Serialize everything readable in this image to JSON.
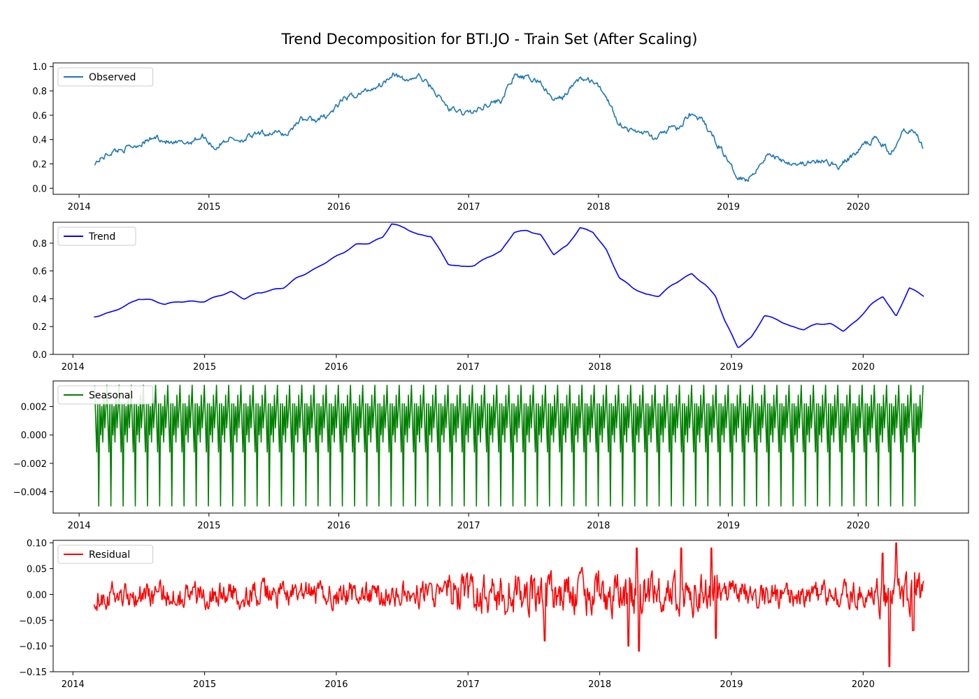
{
  "title": "Trend Decomposition for BTI.JO - Train Set (After Scaling)",
  "chart_data": [
    {
      "type": "line",
      "series": [
        {
          "name": "Observed",
          "color": "#1f77b4"
        }
      ],
      "x_tick_labels": [
        "2014",
        "2015",
        "2016",
        "2017",
        "2018",
        "2019",
        "2020"
      ],
      "y_tick_labels": [
        "0.0",
        "0.2",
        "0.4",
        "0.6",
        "0.8",
        "1.0"
      ],
      "ylim": [
        -0.05,
        1.03
      ],
      "xlim": [
        2013.8,
        2020.85
      ],
      "x_range": [
        2014.12,
        2020.5
      ],
      "legend": "top-left",
      "grid": false,
      "points": [
        [
          2014.12,
          0.21
        ],
        [
          2014.25,
          0.3
        ],
        [
          2014.4,
          0.34
        ],
        [
          2014.5,
          0.38
        ],
        [
          2014.6,
          0.42
        ],
        [
          2014.72,
          0.36
        ],
        [
          2014.85,
          0.38
        ],
        [
          2014.95,
          0.43
        ],
        [
          2015.05,
          0.33
        ],
        [
          2015.15,
          0.41
        ],
        [
          2015.25,
          0.4
        ],
        [
          2015.38,
          0.44
        ],
        [
          2015.5,
          0.46
        ],
        [
          2015.6,
          0.44
        ],
        [
          2015.7,
          0.57
        ],
        [
          2015.85,
          0.56
        ],
        [
          2015.95,
          0.63
        ],
        [
          2016.05,
          0.74
        ],
        [
          2016.15,
          0.77
        ],
        [
          2016.25,
          0.82
        ],
        [
          2016.35,
          0.87
        ],
        [
          2016.42,
          0.96
        ],
        [
          2016.5,
          0.88
        ],
        [
          2016.62,
          0.92
        ],
        [
          2016.72,
          0.82
        ],
        [
          2016.85,
          0.65
        ],
        [
          2016.95,
          0.62
        ],
        [
          2017.05,
          0.63
        ],
        [
          2017.15,
          0.7
        ],
        [
          2017.25,
          0.72
        ],
        [
          2017.35,
          0.92
        ],
        [
          2017.45,
          0.9
        ],
        [
          2017.55,
          0.88
        ],
        [
          2017.65,
          0.72
        ],
        [
          2017.72,
          0.74
        ],
        [
          2017.85,
          0.9
        ],
        [
          2017.95,
          0.88
        ],
        [
          2018.05,
          0.78
        ],
        [
          2018.15,
          0.55
        ],
        [
          2018.25,
          0.47
        ],
        [
          2018.35,
          0.46
        ],
        [
          2018.45,
          0.4
        ],
        [
          2018.55,
          0.5
        ],
        [
          2018.62,
          0.48
        ],
        [
          2018.7,
          0.62
        ],
        [
          2018.8,
          0.55
        ],
        [
          2018.88,
          0.42
        ],
        [
          2018.95,
          0.32
        ],
        [
          2019.05,
          0.12
        ],
        [
          2019.15,
          0.07
        ],
        [
          2019.3,
          0.28
        ],
        [
          2019.45,
          0.22
        ],
        [
          2019.6,
          0.2
        ],
        [
          2019.75,
          0.22
        ],
        [
          2019.85,
          0.18
        ],
        [
          2019.95,
          0.26
        ],
        [
          2020.05,
          0.36
        ],
        [
          2020.15,
          0.42
        ],
        [
          2020.25,
          0.28
        ],
        [
          2020.35,
          0.5
        ],
        [
          2020.45,
          0.45
        ],
        [
          2020.5,
          0.34
        ]
      ]
    },
    {
      "type": "line",
      "series": [
        {
          "name": "Trend",
          "color": "#0000ff"
        }
      ],
      "x_tick_labels": [
        "2014",
        "2015",
        "2016",
        "2017",
        "2018",
        "2019",
        "2020"
      ],
      "y_tick_labels": [
        "0.0",
        "0.2",
        "0.4",
        "0.6",
        "0.8"
      ],
      "ylim": [
        0.0,
        0.95
      ],
      "xlim": [
        2013.85,
        2020.8
      ],
      "x_range": [
        2014.16,
        2020.46
      ],
      "legend": "top-left",
      "grid": false,
      "points": [
        [
          2014.16,
          0.27
        ],
        [
          2014.28,
          0.3
        ],
        [
          2014.4,
          0.35
        ],
        [
          2014.5,
          0.4
        ],
        [
          2014.6,
          0.39
        ],
        [
          2014.7,
          0.36
        ],
        [
          2014.8,
          0.38
        ],
        [
          2014.9,
          0.38
        ],
        [
          2015.0,
          0.38
        ],
        [
          2015.1,
          0.42
        ],
        [
          2015.2,
          0.45
        ],
        [
          2015.3,
          0.4
        ],
        [
          2015.4,
          0.44
        ],
        [
          2015.5,
          0.46
        ],
        [
          2015.6,
          0.48
        ],
        [
          2015.7,
          0.55
        ],
        [
          2015.85,
          0.62
        ],
        [
          2015.95,
          0.68
        ],
        [
          2016.05,
          0.73
        ],
        [
          2016.15,
          0.79
        ],
        [
          2016.25,
          0.8
        ],
        [
          2016.35,
          0.84
        ],
        [
          2016.42,
          0.94
        ],
        [
          2016.52,
          0.91
        ],
        [
          2016.62,
          0.86
        ],
        [
          2016.72,
          0.85
        ],
        [
          2016.85,
          0.65
        ],
        [
          2016.95,
          0.63
        ],
        [
          2017.05,
          0.64
        ],
        [
          2017.15,
          0.7
        ],
        [
          2017.25,
          0.74
        ],
        [
          2017.35,
          0.88
        ],
        [
          2017.45,
          0.89
        ],
        [
          2017.55,
          0.86
        ],
        [
          2017.65,
          0.72
        ],
        [
          2017.75,
          0.78
        ],
        [
          2017.85,
          0.91
        ],
        [
          2017.95,
          0.88
        ],
        [
          2018.05,
          0.75
        ],
        [
          2018.15,
          0.55
        ],
        [
          2018.25,
          0.48
        ],
        [
          2018.35,
          0.43
        ],
        [
          2018.45,
          0.42
        ],
        [
          2018.55,
          0.5
        ],
        [
          2018.62,
          0.54
        ],
        [
          2018.7,
          0.58
        ],
        [
          2018.8,
          0.5
        ],
        [
          2018.88,
          0.42
        ],
        [
          2018.95,
          0.24
        ],
        [
          2019.05,
          0.05
        ],
        [
          2019.15,
          0.12
        ],
        [
          2019.25,
          0.28
        ],
        [
          2019.35,
          0.25
        ],
        [
          2019.45,
          0.2
        ],
        [
          2019.55,
          0.18
        ],
        [
          2019.65,
          0.22
        ],
        [
          2019.75,
          0.22
        ],
        [
          2019.85,
          0.17
        ],
        [
          2019.95,
          0.24
        ],
        [
          2020.05,
          0.35
        ],
        [
          2020.15,
          0.42
        ],
        [
          2020.25,
          0.27
        ],
        [
          2020.35,
          0.48
        ],
        [
          2020.46,
          0.42
        ]
      ]
    },
    {
      "type": "line",
      "series": [
        {
          "name": "Seasonal",
          "color": "#008000"
        }
      ],
      "x_tick_labels": [
        "2014",
        "2015",
        "2016",
        "2017",
        "2018",
        "2019",
        "2020"
      ],
      "y_tick_labels": [
        "−0.004",
        "0.002",
        "0.000",
        "−0.002"
      ],
      "y_tick_values": [
        -0.004,
        0.002,
        0.0,
        -0.002
      ],
      "ylim": [
        -0.0055,
        0.0038
      ],
      "xlim": [
        2013.8,
        2020.85
      ],
      "x_range": [
        2014.12,
        2020.5
      ],
      "pattern_values": [
        0.0035,
        0.001,
        -0.0012,
        0.0022,
        -0.005,
        0.0022,
        0.0,
        0.002,
        -0.0005,
        0.0028,
        0.0005,
        0.0018
      ],
      "legend": "top-left",
      "grid": false
    },
    {
      "type": "line",
      "series": [
        {
          "name": "Residual",
          "color": "#ff0000"
        }
      ],
      "x_tick_labels": [
        "2014",
        "2015",
        "2016",
        "2017",
        "2018",
        "2019",
        "2020"
      ],
      "y_tick_labels": [
        "−0.15",
        "−0.10",
        "−0.05",
        "0.00",
        "0.05",
        "0.10"
      ],
      "y_tick_values": [
        -0.15,
        -0.1,
        -0.05,
        0.0,
        0.05,
        0.1
      ],
      "ylim": [
        -0.15,
        0.105
      ],
      "xlim": [
        2013.85,
        2020.8
      ],
      "x_range": [
        2014.16,
        2020.46
      ],
      "legend": "top-left",
      "grid": false,
      "spikes": [
        [
          2017.58,
          -0.09
        ],
        [
          2018.22,
          -0.1
        ],
        [
          2018.28,
          0.09
        ],
        [
          2018.3,
          -0.11
        ],
        [
          2018.62,
          0.09
        ],
        [
          2018.85,
          0.09
        ],
        [
          2018.88,
          -0.085
        ],
        [
          2020.15,
          0.08
        ],
        [
          2020.2,
          -0.14
        ],
        [
          2020.25,
          0.1
        ],
        [
          2020.38,
          -0.07
        ]
      ]
    }
  ]
}
